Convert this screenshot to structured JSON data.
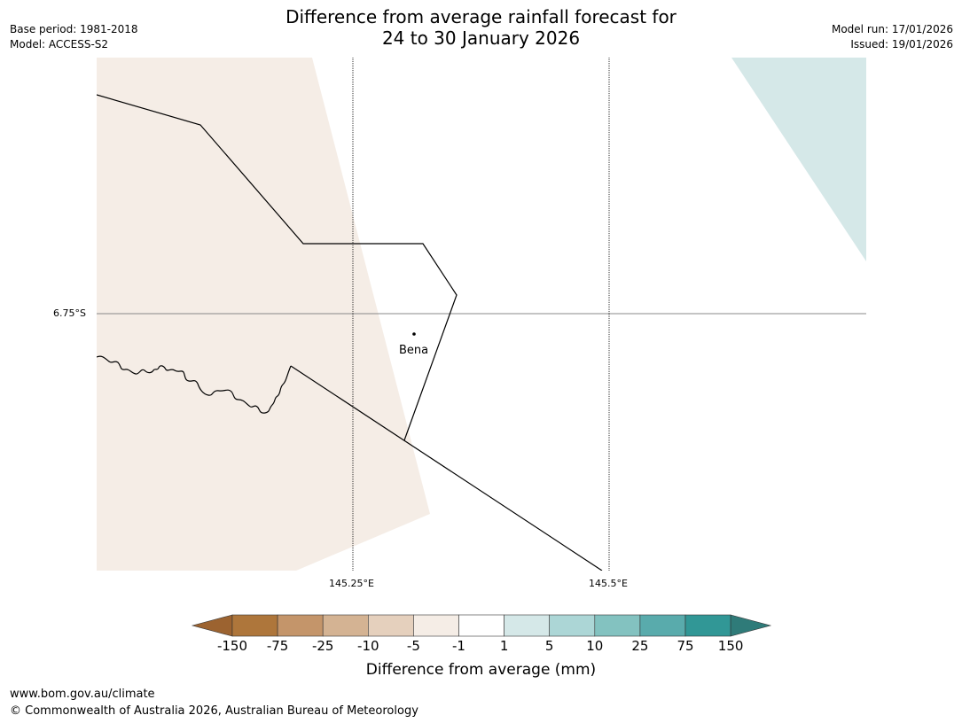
{
  "title": {
    "line1": "Difference from average rainfall forecast for",
    "line2": "24 to 30 January 2026"
  },
  "meta": {
    "base_period": "Base period: 1981-2018",
    "model": "Model: ACCESS-S2",
    "model_run": "Model run: 17/01/2026",
    "issued": "Issued: 19/01/2026"
  },
  "map": {
    "lat_gridline_label": "6.75°S",
    "lon_gridline_labels": [
      "145.25°E",
      "145.5°E"
    ],
    "town": "Bena",
    "regions": [
      {
        "category": "-5 to -1",
        "color": "#f5ede6"
      },
      {
        "category": "1 to 5",
        "color": "#d5e8e8"
      }
    ]
  },
  "colorbar": {
    "title": "Difference from average (mm)",
    "ticks": [
      "-150",
      "-75",
      "-25",
      "-10",
      "-5",
      "-1",
      "1",
      "5",
      "10",
      "25",
      "75",
      "150"
    ],
    "colors": [
      "#9c6330",
      "#ae763b",
      "#c4956a",
      "#d4b393",
      "#e5d0bd",
      "#f5ede6",
      "#ffffff",
      "#d5e8e8",
      "#acd6d6",
      "#83c2c0",
      "#59abac",
      "#319796",
      "#2f7b79"
    ]
  },
  "footer": {
    "url": "www.bom.gov.au/climate",
    "copyright": "© Commonwealth of Australia 2026, Australian Bureau of Meteorology"
  }
}
